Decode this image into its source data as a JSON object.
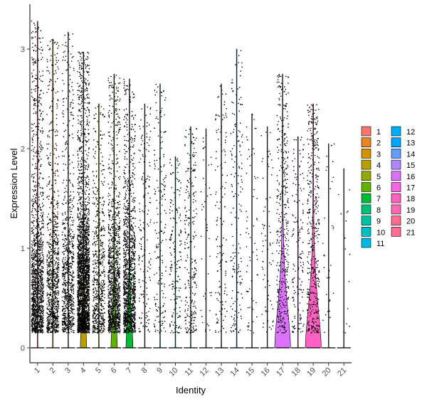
{
  "chart_data": {
    "type": "violin",
    "xlabel": "Identity",
    "ylabel": "Expression Level",
    "ylim": [
      -0.15,
      3.45
    ],
    "yticks": [
      0,
      1,
      2,
      3
    ],
    "legend_position": "right",
    "grid": false,
    "categories": [
      "1",
      "2",
      "3",
      "4",
      "5",
      "6",
      "7",
      "8",
      "9",
      "10",
      "11",
      "12",
      "13",
      "14",
      "15",
      "16",
      "17",
      "18",
      "19",
      "20",
      "21"
    ],
    "colors": [
      "#F8766D",
      "#E88526",
      "#D39200",
      "#B79F00",
      "#93AA00",
      "#5EB300",
      "#00BA38",
      "#00BF74",
      "#00C19F",
      "#00BFC4",
      "#00B9E3",
      "#00ADFA",
      "#00A5FF",
      "#619CFF",
      "#AE87FF",
      "#DB72FB",
      "#F564E3",
      "#FF61C3",
      "#FF69B4",
      "#FF6C91",
      "#FF6C91"
    ],
    "series_colors": [
      "#F8766D",
      "#E88526",
      "#D39200",
      "#B79F00",
      "#93AA00",
      "#5EB300",
      "#00BA38",
      "#00BF74",
      "#00C19F",
      "#00BFC4",
      "#00B9E3",
      "#00ADFA",
      "#00A5FF",
      "#619CFF",
      "#AE87FF",
      "#DB72FB",
      "#DB72FB",
      "#F564E3",
      "#FF61C3",
      "#FF6C91",
      "#FF6C91"
    ],
    "max_values": [
      3.28,
      3.1,
      3.17,
      2.97,
      2.45,
      2.75,
      2.7,
      2.45,
      2.65,
      1.92,
      2.22,
      2.2,
      2.65,
      3.0,
      2.35,
      2.22,
      2.75,
      2.12,
      2.45,
      2.05,
      1.8
    ],
    "violin_widths": [
      0.05,
      0.05,
      0.05,
      0.38,
      0.05,
      0.38,
      0.42,
      0.05,
      0.05,
      0.05,
      0.05,
      0.05,
      0.05,
      0.05,
      0.05,
      0.05,
      1.0,
      0.05,
      1.0,
      0.05,
      0.05
    ],
    "dot_counts": [
      1400,
      950,
      850,
      2600,
      650,
      1200,
      1300,
      170,
      200,
      170,
      260,
      45,
      140,
      170,
      65,
      70,
      400,
      160,
      430,
      35,
      15
    ]
  }
}
